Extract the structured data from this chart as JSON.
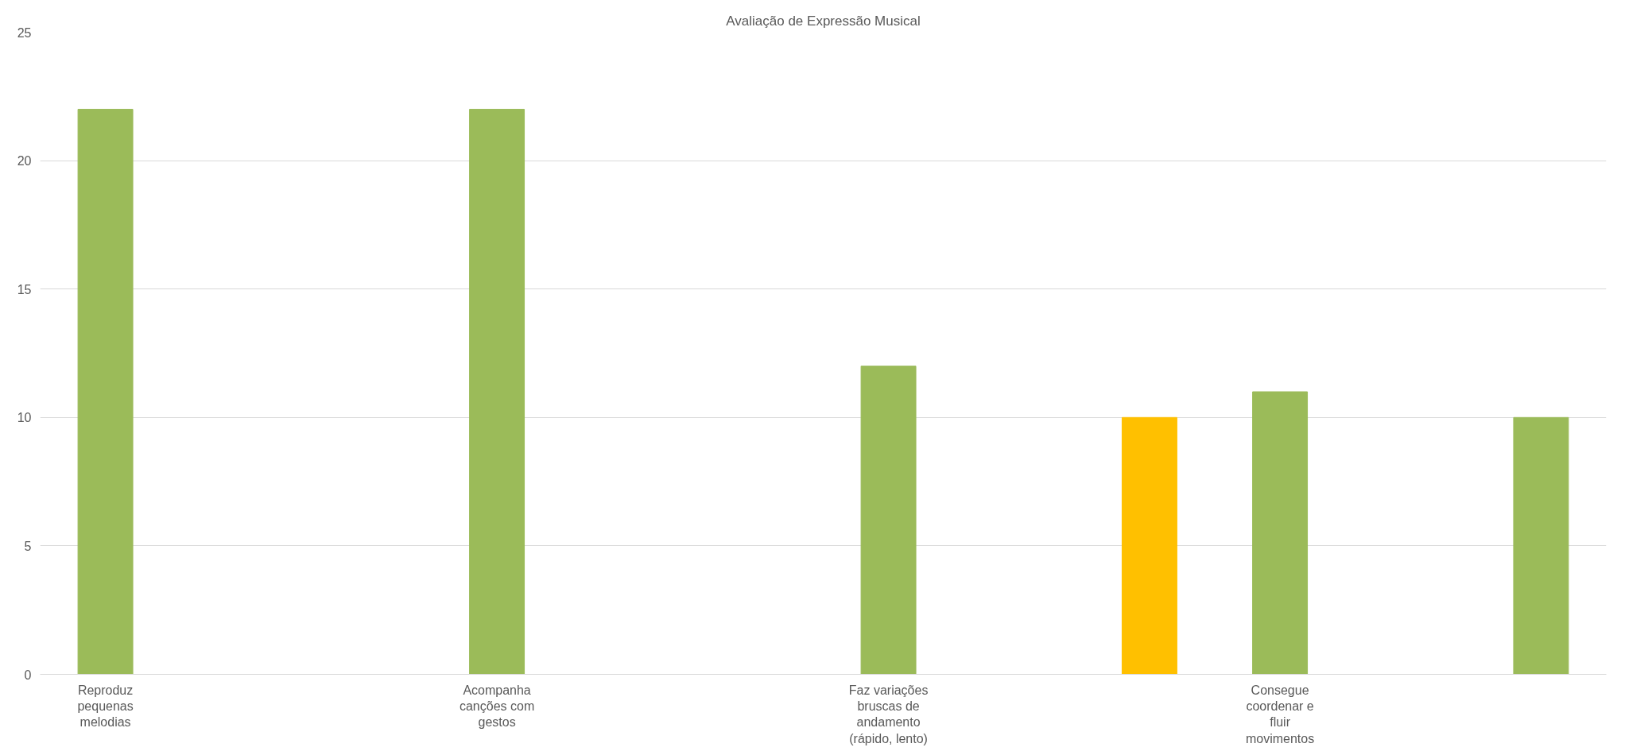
{
  "chart_data": {
    "type": "bar",
    "title": "Avaliação de Expressão Musical",
    "categories": [
      "Reproduz pequenas melodias",
      null,
      null,
      "Acompanha canções com gestos",
      null,
      null,
      "Faz variações bruscas de andamento (rápido, lento)",
      null,
      null,
      "Consegue coordenar e fluir movimentos",
      null,
      null
    ],
    "values": [
      22,
      null,
      null,
      22,
      null,
      null,
      12,
      null,
      10,
      11,
      null,
      10
    ],
    "colors": [
      "#9bbb59",
      null,
      null,
      "#9bbb59",
      null,
      null,
      "#9bbb59",
      null,
      "#ffc000",
      "#9bbb59",
      null,
      "#9bbb59"
    ],
    "ylim": [
      0,
      25
    ],
    "yticks": [
      0,
      5,
      10,
      15,
      20,
      25
    ],
    "grid": "y"
  }
}
